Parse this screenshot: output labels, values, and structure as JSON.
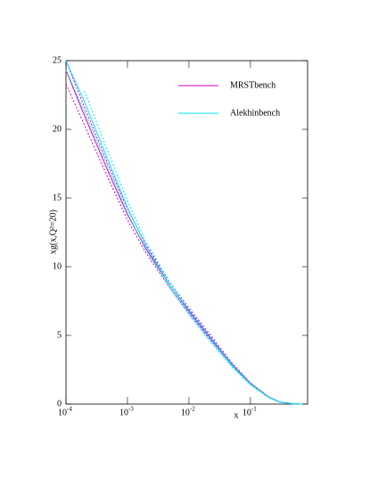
{
  "chart_data": {
    "type": "line",
    "xlabel": "x",
    "ylabel": "xg(x,Q²=20)",
    "xscale": "log",
    "xlim": [
      0.0001,
      0.85
    ],
    "ylim": [
      0,
      25
    ],
    "xticks": [
      {
        "value": 0.0001,
        "label": "10",
        "exponent": "-4"
      },
      {
        "value": 0.001,
        "label": "10",
        "exponent": "-3"
      },
      {
        "value": 0.01,
        "label": "10",
        "exponent": "-2"
      },
      {
        "value": 0.1,
        "label": "10",
        "exponent": "-1"
      }
    ],
    "yticks": [
      0,
      5,
      10,
      15,
      20,
      25
    ],
    "legend": "upper right",
    "x": [
      0.0001,
      0.0002,
      0.0005,
      0.001,
      0.002,
      0.005,
      0.01,
      0.02,
      0.05,
      0.1,
      0.2,
      0.3,
      0.5,
      0.7
    ],
    "series": [
      {
        "name": "MRSTbench",
        "color": "#cc00cc",
        "values": [
          24.3,
          21.0,
          16.8,
          13.8,
          11.3,
          8.6,
          6.8,
          5.1,
          2.9,
          1.5,
          0.5,
          0.15,
          0.02,
          0
        ],
        "upper": [
          25.0,
          21.6,
          17.3,
          14.2,
          11.6,
          8.8,
          7.0,
          5.3,
          3.0,
          1.55,
          0.52,
          0.16,
          0.02,
          0
        ],
        "lower": [
          23.3,
          20.3,
          16.3,
          13.4,
          11.0,
          8.4,
          6.6,
          4.9,
          2.8,
          1.45,
          0.48,
          0.14,
          0.02,
          0
        ]
      },
      {
        "name": "Alekhinbench",
        "color": "#00e5ee",
        "values": [
          25.0,
          22.0,
          17.6,
          14.3,
          11.5,
          8.6,
          6.7,
          5.0,
          2.8,
          1.45,
          0.48,
          0.15,
          0.02,
          0
        ],
        "upper": [
          null,
          22.8,
          18.2,
          14.8,
          11.8,
          8.8,
          6.9,
          5.2,
          2.9,
          1.5,
          0.5,
          0.15,
          0.02,
          0
        ],
        "lower": [
          24.3,
          21.3,
          17.1,
          13.9,
          11.2,
          8.4,
          6.5,
          4.8,
          2.7,
          1.4,
          0.46,
          0.14,
          0.02,
          0
        ]
      }
    ]
  }
}
